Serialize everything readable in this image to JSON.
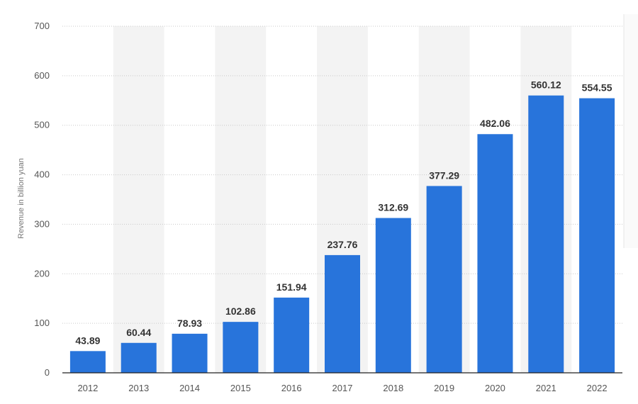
{
  "chart_data": {
    "type": "bar",
    "categories": [
      "2012",
      "2013",
      "2014",
      "2015",
      "2016",
      "2017",
      "2018",
      "2019",
      "2020",
      "2021",
      "2022"
    ],
    "values": [
      43.89,
      60.44,
      78.93,
      102.86,
      151.94,
      237.76,
      312.69,
      377.29,
      482.06,
      560.12,
      554.55
    ],
    "value_labels": [
      "43.89",
      "60.44",
      "78.93",
      "102.86",
      "151.94",
      "237.76",
      "312.69",
      "377.29",
      "482.06",
      "560.12",
      "554.55"
    ],
    "ylabel": "Revenue in billion yuan",
    "xlabel": "",
    "ylim": [
      0,
      700
    ],
    "yticks": [
      "0",
      "100",
      "200",
      "300",
      "400",
      "500",
      "600",
      "700"
    ],
    "grid": true,
    "legend": "none",
    "colors": {
      "bar": "#2874db",
      "band": "#f3f3f3",
      "grid": "#c9c9c9"
    }
  }
}
